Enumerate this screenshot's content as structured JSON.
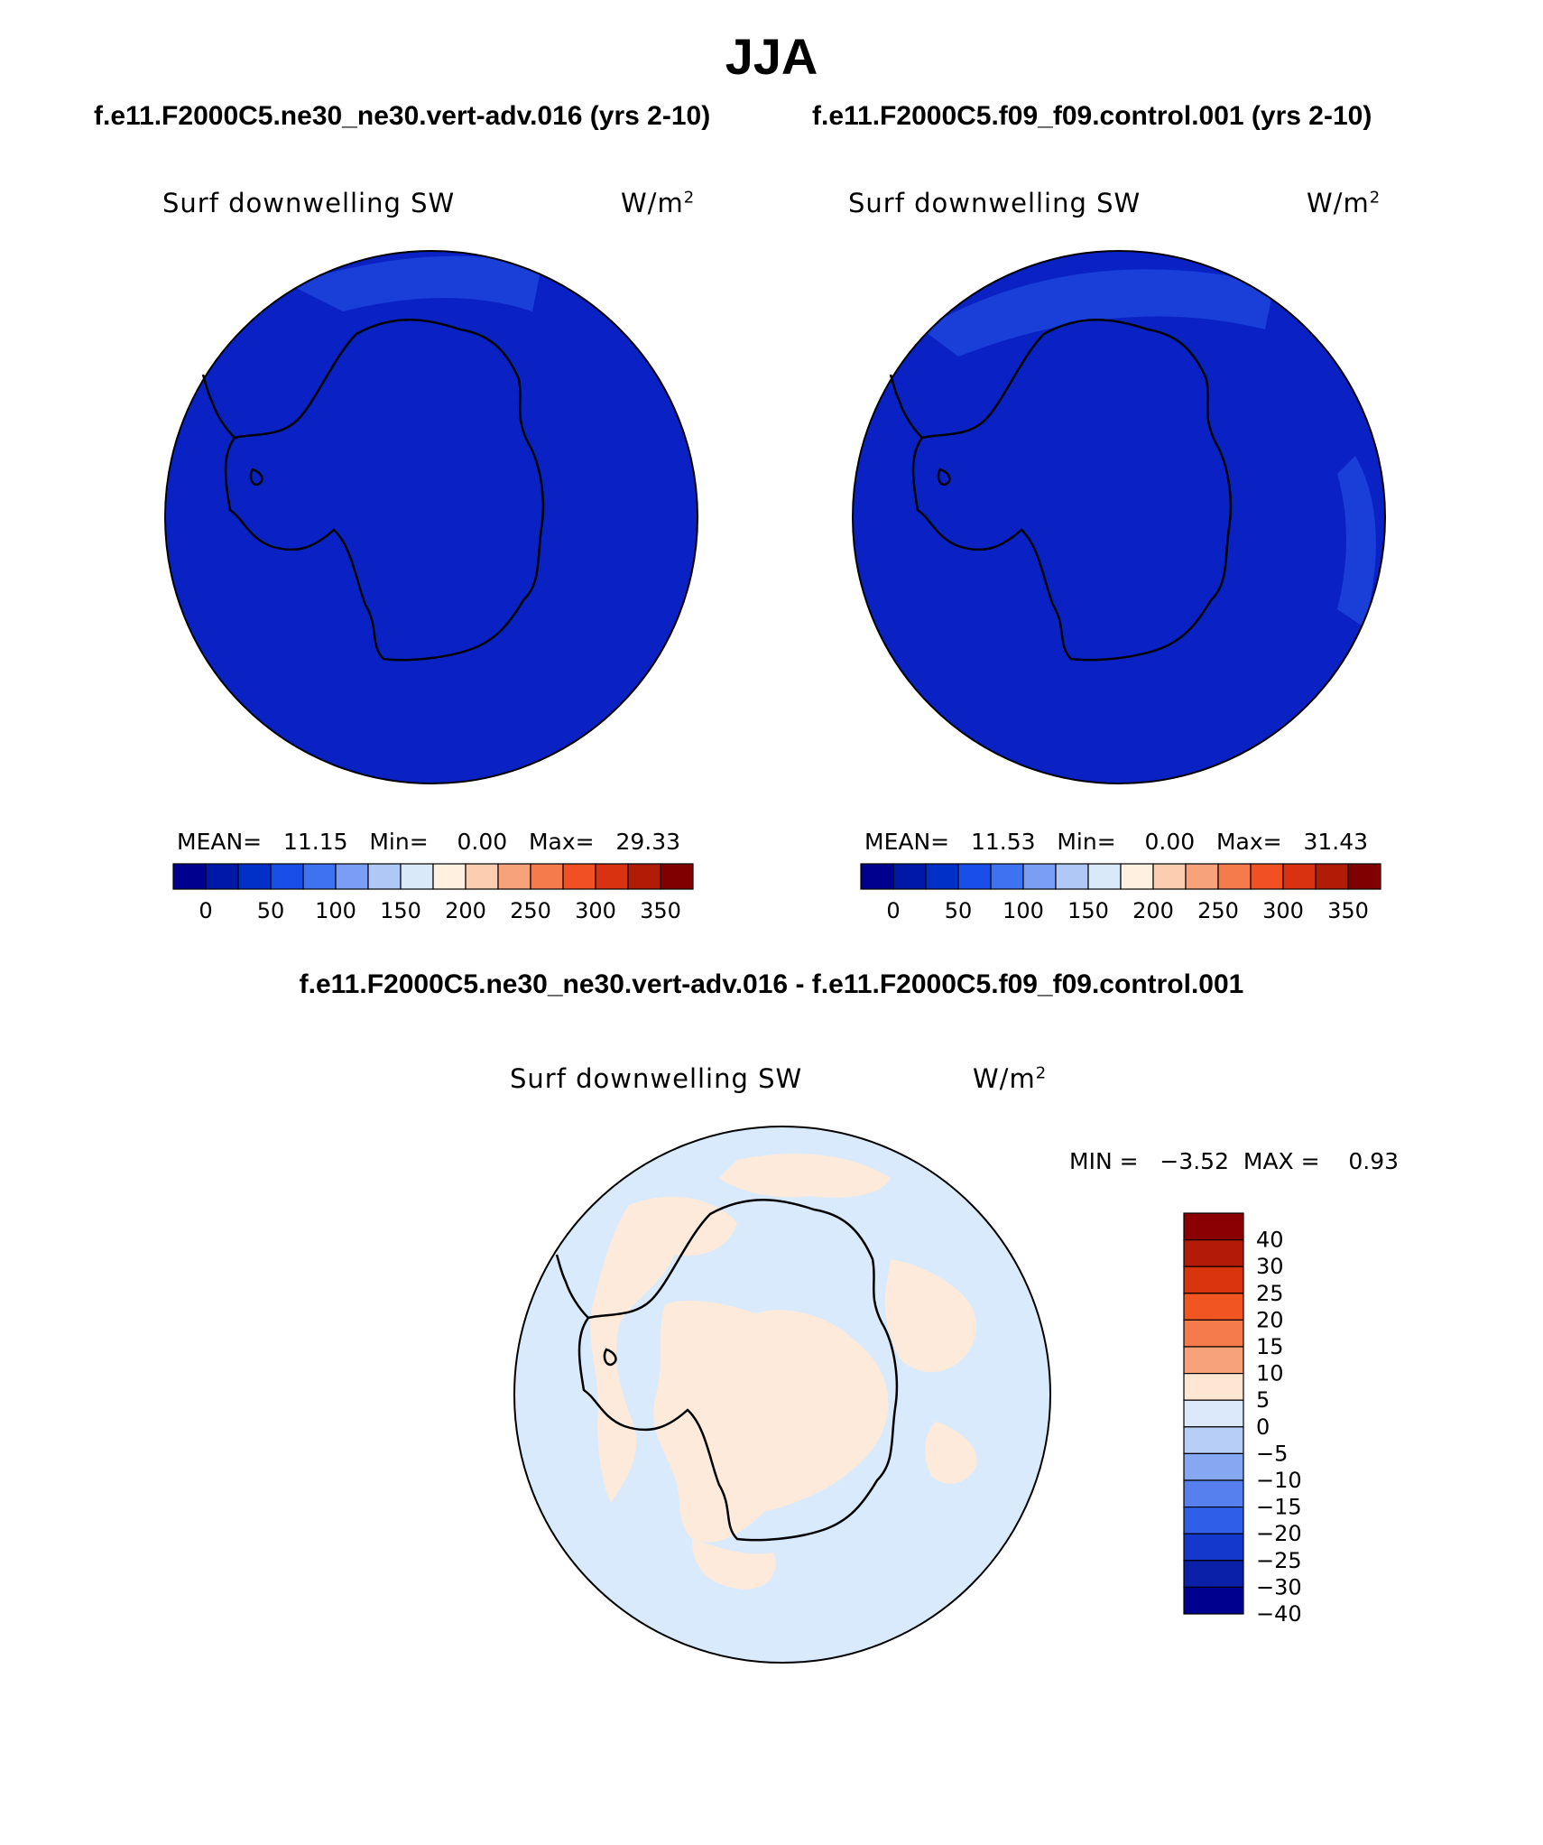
{
  "title": "JJA",
  "panels": [
    {
      "case": "f.e11.F2000C5.ne30_ne30.vert-adv.016 (yrs 2-10)",
      "field": "Surf downwelling SW",
      "units_base": "W/m",
      "units_exp": "2",
      "stats_text": "MEAN=   11.15   Min=    0.00   Max=   29.33",
      "stats": {
        "mean": 11.15,
        "min": 0.0,
        "max": 29.33
      }
    },
    {
      "case": "f.e11.F2000C5.f09_f09.control.001 (yrs 2-10)",
      "field": "Surf downwelling SW",
      "units_base": "W/m",
      "units_exp": "2",
      "stats_text": "MEAN=   11.53   Min=    0.00   Max=   31.43",
      "stats": {
        "mean": 11.53,
        "min": 0.0,
        "max": 31.43
      }
    }
  ],
  "abs_colorbar": {
    "colors": [
      "#00008e",
      "#0018a8",
      "#0030c8",
      "#1a4ee8",
      "#3f72f0",
      "#7a9ef4",
      "#b0c8f6",
      "#dae9fa",
      "#fff0e0",
      "#fccdb0",
      "#f8a27c",
      "#f57a4c",
      "#f15122",
      "#d93210",
      "#b01c06",
      "#800000"
    ],
    "ticks": [
      "0",
      "50",
      "100",
      "150",
      "200",
      "250",
      "300",
      "350"
    ]
  },
  "difference": {
    "title": "f.e11.F2000C5.ne30_ne30.vert-adv.016 - f.e11.F2000C5.f09_f09.control.001",
    "field": "Surf downwelling SW",
    "units_base": "W/m",
    "units_exp": "2",
    "stats_text": "MIN =   −3.52  MAX =    0.93",
    "stats": {
      "min": -3.52,
      "max": 0.93
    }
  },
  "diff_colorbar": {
    "colors_top_to_bottom": [
      "#8b0000",
      "#b31a08",
      "#d8340e",
      "#f05522",
      "#f57a4c",
      "#f8a27c",
      "#fde6d2",
      "#dce9fa",
      "#b7cff6",
      "#86a8f2",
      "#5580ee",
      "#2f5ee8",
      "#1538cc",
      "#0a20a8",
      "#00008e"
    ],
    "labels_top_to_bottom": [
      "40",
      "30",
      "25",
      "20",
      "15",
      "10",
      "5",
      "0",
      "−5",
      "−10",
      "−15",
      "−20",
      "−25",
      "−30",
      "−40"
    ]
  },
  "map_colors": {
    "abs_field": "#0a22c4",
    "abs_field_edge": "#1a3fd8",
    "diff_negative": "#d8eafc",
    "diff_positive": "#fdeadb",
    "coastline": "#000000"
  }
}
